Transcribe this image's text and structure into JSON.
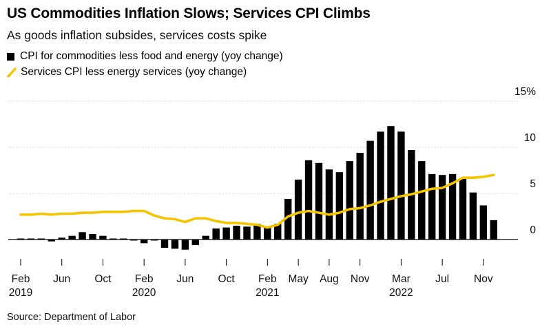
{
  "title": "US Commodities Inflation Slows; Services CPI Climbs",
  "subtitle": "As goods inflation subsides, services costs spike",
  "source": "Source: Department of Labor",
  "colors": {
    "bar": "#000000",
    "line": "#f5c400",
    "grid": "#d0d0d0",
    "axis": "#000000"
  },
  "chart_data": {
    "type": "bar",
    "x": [
      "2019-02",
      "2019-03",
      "2019-04",
      "2019-05",
      "2019-06",
      "2019-07",
      "2019-08",
      "2019-09",
      "2019-10",
      "2019-11",
      "2019-12",
      "2020-01",
      "2020-02",
      "2020-03",
      "2020-04",
      "2020-05",
      "2020-06",
      "2020-07",
      "2020-08",
      "2020-09",
      "2020-10",
      "2020-11",
      "2020-12",
      "2021-01",
      "2021-02",
      "2021-03",
      "2021-04",
      "2021-05",
      "2021-06",
      "2021-07",
      "2021-08",
      "2021-09",
      "2021-10",
      "2021-11",
      "2021-12",
      "2022-01",
      "2022-02",
      "2022-03",
      "2022-04",
      "2022-05",
      "2022-06",
      "2022-07",
      "2022-08",
      "2022-09",
      "2022-10",
      "2022-11",
      "2022-12"
    ],
    "series": [
      {
        "name": "CPI for commodities less food and energy (yoy change)",
        "kind": "bar",
        "values": [
          0.1,
          0.0,
          0.0,
          -0.2,
          0.2,
          0.4,
          0.8,
          0.6,
          0.4,
          0.1,
          0.0,
          -0.1,
          -0.4,
          -0.1,
          -0.9,
          -1.0,
          -1.1,
          -0.6,
          0.4,
          1.2,
          1.3,
          1.5,
          1.4,
          1.7,
          1.3,
          1.7,
          4.4,
          6.5,
          8.6,
          8.3,
          7.6,
          7.3,
          8.5,
          9.4,
          10.7,
          11.7,
          12.3,
          11.7,
          9.7,
          8.5,
          7.1,
          7.0,
          7.1,
          6.6,
          5.1,
          3.7,
          2.1
        ]
      },
      {
        "name": "Services CPI less energy services (yoy change)",
        "kind": "line",
        "values": [
          2.7,
          2.7,
          2.8,
          2.7,
          2.8,
          2.8,
          2.9,
          2.9,
          3.0,
          3.0,
          3.0,
          3.1,
          3.1,
          2.6,
          2.3,
          2.2,
          1.9,
          2.3,
          2.3,
          2.0,
          1.8,
          1.8,
          1.7,
          1.6,
          1.3,
          1.6,
          2.5,
          2.9,
          3.1,
          2.9,
          2.7,
          2.9,
          3.3,
          3.4,
          3.7,
          4.1,
          4.4,
          4.7,
          4.9,
          5.2,
          5.5,
          5.6,
          6.1,
          6.7,
          6.7,
          6.8,
          7.0
        ]
      }
    ],
    "x_tick_labels": [
      {
        "month": "Feb",
        "year": "2019",
        "at": "2019-02"
      },
      {
        "month": "Jun",
        "year": "",
        "at": "2019-06"
      },
      {
        "month": "Oct",
        "year": "",
        "at": "2019-10"
      },
      {
        "month": "Feb",
        "year": "2020",
        "at": "2020-02"
      },
      {
        "month": "Jun",
        "year": "",
        "at": "2020-06"
      },
      {
        "month": "Oct",
        "year": "",
        "at": "2020-10"
      },
      {
        "month": "Feb",
        "year": "2021",
        "at": "2021-02"
      },
      {
        "month": "May",
        "year": "",
        "at": "2021-05"
      },
      {
        "month": "Aug",
        "year": "",
        "at": "2021-08"
      },
      {
        "month": "Nov",
        "year": "",
        "at": "2021-11"
      },
      {
        "month": "Mar",
        "year": "2022",
        "at": "2022-03"
      },
      {
        "month": "Jul",
        "year": "",
        "at": "2022-07"
      },
      {
        "month": "Nov",
        "year": "",
        "at": "2022-11"
      }
    ],
    "y_ticks": [
      {
        "value": 15,
        "label": "15%"
      },
      {
        "value": 10,
        "label": "10"
      },
      {
        "value": 5,
        "label": "5"
      },
      {
        "value": 0,
        "label": "0"
      }
    ],
    "ylim": [
      -1.5,
      15
    ],
    "grid": true,
    "y_axis_side": "right",
    "legend_position": "top-left"
  }
}
